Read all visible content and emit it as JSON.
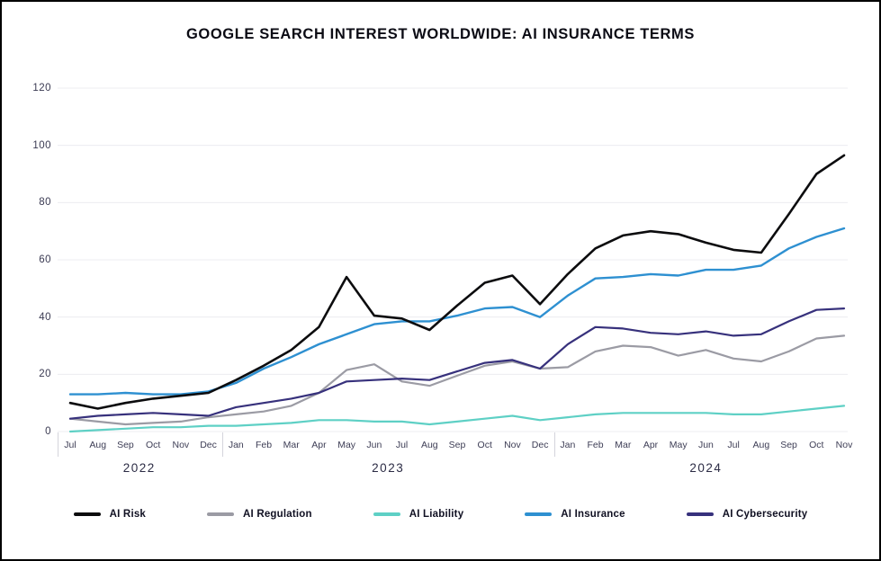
{
  "title": "GOOGLE SEARCH INTEREST WORLDWIDE: AI INSURANCE TERMS",
  "colors": {
    "background": "#ffffff",
    "frame_border": "#000000",
    "gridline": "#ececf0",
    "year_separator": "#d4d4dc",
    "axis_text": "#3a3a52",
    "title_text": "#0b0b14",
    "legend_text": "#101022"
  },
  "chart_data": {
    "type": "line",
    "title": "GOOGLE SEARCH INTEREST WORLDWIDE: AI INSURANCE TERMS",
    "xlabel": "",
    "ylabel": "",
    "ylim": [
      0,
      120
    ],
    "y_ticks": [
      0,
      20,
      40,
      60,
      80,
      100,
      120
    ],
    "grid": "horizontal-only",
    "legend_position": "bottom",
    "x_months": [
      "Jul",
      "Aug",
      "Sep",
      "Oct",
      "Nov",
      "Dec",
      "Jan",
      "Feb",
      "Mar",
      "Apr",
      "May",
      "Jun",
      "Jul",
      "Aug",
      "Sep",
      "Oct",
      "Nov",
      "Dec",
      "Jan",
      "Feb",
      "Mar",
      "Apr",
      "May",
      "Jun",
      "Jul",
      "Aug",
      "Sep",
      "Oct",
      "Nov"
    ],
    "year_groups": [
      {
        "label": "2022",
        "count": 6
      },
      {
        "label": "2023",
        "count": 12
      },
      {
        "label": "2024",
        "count": 11
      }
    ],
    "series": [
      {
        "name": "AI Risk",
        "color": "#0c0c0e",
        "stroke_width": 2.6,
        "values": [
          10,
          8,
          10,
          11.5,
          12.5,
          13.5,
          18,
          23,
          28.5,
          36.5,
          54,
          40.5,
          39.5,
          35.5,
          44,
          52,
          54.5,
          44.5,
          55,
          64,
          68.5,
          70,
          69,
          66,
          63.5,
          62.5,
          76,
          90,
          96.5
        ]
      },
      {
        "name": "AI Regulation",
        "color": "#9b9ba4",
        "stroke_width": 2.2,
        "values": [
          4.5,
          3.5,
          2.5,
          3,
          3.5,
          5,
          6,
          7,
          9,
          13.5,
          21.5,
          23.5,
          17.5,
          16,
          19.5,
          23,
          24.5,
          22,
          22.5,
          28,
          30,
          29.5,
          26.5,
          28.5,
          25.5,
          24.5,
          28,
          32.5,
          33.5
        ]
      },
      {
        "name": "AI Liability",
        "color": "#5ed0c5",
        "stroke_width": 2.2,
        "values": [
          0,
          0.5,
          1,
          1.5,
          1.5,
          2,
          2,
          2.5,
          3,
          4,
          4,
          3.5,
          3.5,
          2.5,
          3.5,
          4.5,
          5.5,
          4,
          5,
          6,
          6.5,
          6.5,
          6.5,
          6.5,
          6,
          6,
          7,
          8,
          9
        ]
      },
      {
        "name": "AI Insurance",
        "color": "#2e90d1",
        "stroke_width": 2.4,
        "values": [
          13,
          13,
          13.5,
          13,
          13,
          14,
          17,
          22,
          26,
          30.5,
          34,
          37.5,
          38.5,
          38.5,
          40.5,
          43,
          43.5,
          40,
          47.5,
          53.5,
          54,
          55,
          54.5,
          56.5,
          56.5,
          58,
          64,
          68,
          71
        ]
      },
      {
        "name": "AI Cybersecurity",
        "color": "#37317c",
        "stroke_width": 2.2,
        "values": [
          4.5,
          5.5,
          6,
          6.5,
          6,
          5.5,
          8.5,
          10,
          11.5,
          13.5,
          17.5,
          18,
          18.5,
          18,
          21,
          24,
          25,
          22,
          30.5,
          36.5,
          36,
          34.5,
          34,
          35,
          33.5,
          34,
          38.5,
          42.5,
          43
        ]
      }
    ]
  }
}
